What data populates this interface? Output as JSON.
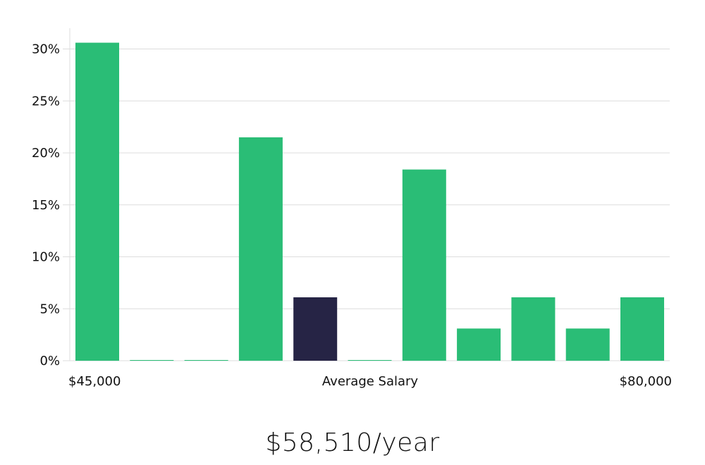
{
  "chart_data": {
    "type": "bar",
    "title": "",
    "xlabel": "Average Salary",
    "ylabel": "",
    "x_start_label": "$45,000",
    "x_end_label": "$80,000",
    "values": [
      30.6,
      0,
      0,
      21.5,
      6.1,
      0,
      18.4,
      3.1,
      6.1,
      3.1,
      6.1
    ],
    "highlight_index": 4,
    "ylim": [
      0,
      32
    ],
    "yticks": [
      0,
      5,
      10,
      15,
      20,
      25,
      30
    ],
    "ytick_labels": [
      "0%",
      "5%",
      "10%",
      "15%",
      "20%",
      "25%",
      "30%"
    ],
    "grid": true,
    "colors": {
      "bar": "#2abd76",
      "highlight": "#262445",
      "grid": "#dddddd"
    }
  },
  "summary": {
    "salary_text": "$58,510/year"
  }
}
